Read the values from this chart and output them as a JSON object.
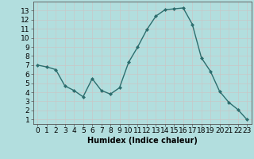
{
  "x": [
    0,
    1,
    2,
    3,
    4,
    5,
    6,
    7,
    8,
    9,
    10,
    11,
    12,
    13,
    14,
    15,
    16,
    17,
    18,
    19,
    20,
    21,
    22,
    23
  ],
  "y": [
    7.0,
    6.8,
    6.5,
    4.7,
    4.2,
    3.5,
    5.5,
    4.2,
    3.8,
    4.5,
    7.3,
    9.0,
    10.9,
    12.4,
    13.1,
    13.2,
    13.3,
    11.5,
    7.8,
    6.3,
    4.1,
    2.9,
    2.1,
    1.0
  ],
  "line_color": "#2d6e6e",
  "marker": "D",
  "marker_size": 2.0,
  "bg_color": "#b2dede",
  "grid_color": "#c8c8c8",
  "xlabel": "Humidex (Indice chaleur)",
  "xlim": [
    -0.5,
    23.5
  ],
  "ylim": [
    0.5,
    14
  ],
  "yticks": [
    1,
    2,
    3,
    4,
    5,
    6,
    7,
    8,
    9,
    10,
    11,
    12,
    13
  ],
  "xticks": [
    0,
    1,
    2,
    3,
    4,
    5,
    6,
    7,
    8,
    9,
    10,
    11,
    12,
    13,
    14,
    15,
    16,
    17,
    18,
    19,
    20,
    21,
    22,
    23
  ],
  "xlabel_fontsize": 7,
  "tick_fontsize": 6.5,
  "linewidth": 1.0
}
